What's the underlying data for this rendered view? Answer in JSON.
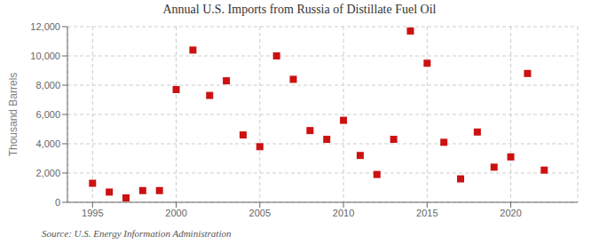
{
  "chart_data": {
    "type": "scatter",
    "title": "Annual U.S. Imports from Russia of Distillate Fuel Oil",
    "ylabel": "Thousand Barrels",
    "annotations": [
      "Source: U.S. Energy Information Administration"
    ],
    "x": [
      1995,
      1996,
      1997,
      1998,
      1999,
      2000,
      2001,
      2002,
      2003,
      2004,
      2005,
      2006,
      2007,
      2008,
      2009,
      2010,
      2011,
      2012,
      2013,
      2014,
      2015,
      2016,
      2017,
      2018,
      2019,
      2020,
      2021,
      2022
    ],
    "values": [
      1300,
      700,
      300,
      800,
      800,
      7700,
      10400,
      7300,
      8300,
      4600,
      3800,
      10000,
      8400,
      4900,
      4300,
      5600,
      3200,
      1900,
      4300,
      11700,
      9500,
      4100,
      1600,
      4800,
      2400,
      3100,
      8800,
      2200
    ],
    "color": "#CC1111",
    "marker": "square",
    "xlim": [
      1993.5,
      2024
    ],
    "xticks": [
      1995,
      2000,
      2005,
      2010,
      2015,
      2020
    ],
    "ylim": [
      0,
      12000
    ],
    "yticks": [
      0,
      {
        "value": 2000,
        "label": "2,000"
      },
      {
        "value": 4000,
        "label": "4,000"
      },
      {
        "value": 6000,
        "label": "6,000"
      },
      {
        "value": 8000,
        "label": "8,000"
      },
      {
        "value": 10000,
        "label": "10,000"
      },
      {
        "value": 12000,
        "label": "12,000"
      }
    ],
    "grid": true
  }
}
